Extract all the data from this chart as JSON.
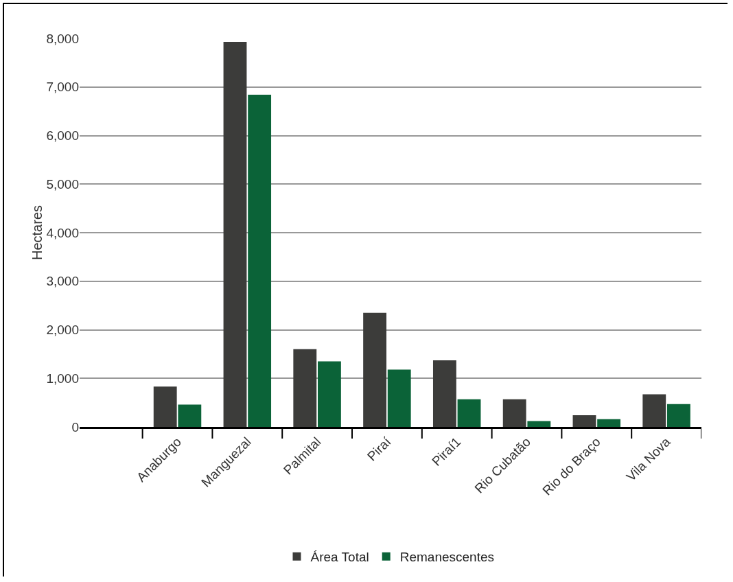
{
  "chart_data": {
    "type": "bar",
    "ylabel": "Hectares",
    "categories": [
      "Anaburgo",
      "Manguezal",
      "Palmital",
      "Piraí",
      "Piraí1",
      "Rio Cubatão",
      "Rio do Braço",
      "Vila Nova"
    ],
    "series": [
      {
        "name": "Área Total",
        "color": "#3c3c3a",
        "values": [
          830,
          7930,
          1600,
          2350,
          1370,
          570,
          240,
          670
        ]
      },
      {
        "name": "Remanescentes",
        "color": "#0b6338",
        "values": [
          460,
          6840,
          1350,
          1180,
          570,
          120,
          160,
          470
        ]
      }
    ],
    "ylim": [
      0,
      8000
    ],
    "yticks": [
      {
        "value": 0,
        "label": "0"
      },
      {
        "value": 1000,
        "label": "1,000"
      },
      {
        "value": 2000,
        "label": "2,000"
      },
      {
        "value": 3000,
        "label": "3,000"
      },
      {
        "value": 4000,
        "label": "4,000"
      },
      {
        "value": 5000,
        "label": "5,000"
      },
      {
        "value": 6000,
        "label": "6,000"
      },
      {
        "value": 7000,
        "label": "7,000"
      },
      {
        "value": 8000,
        "label": "8,000"
      }
    ],
    "grid": "y",
    "legend": "bottom"
  }
}
